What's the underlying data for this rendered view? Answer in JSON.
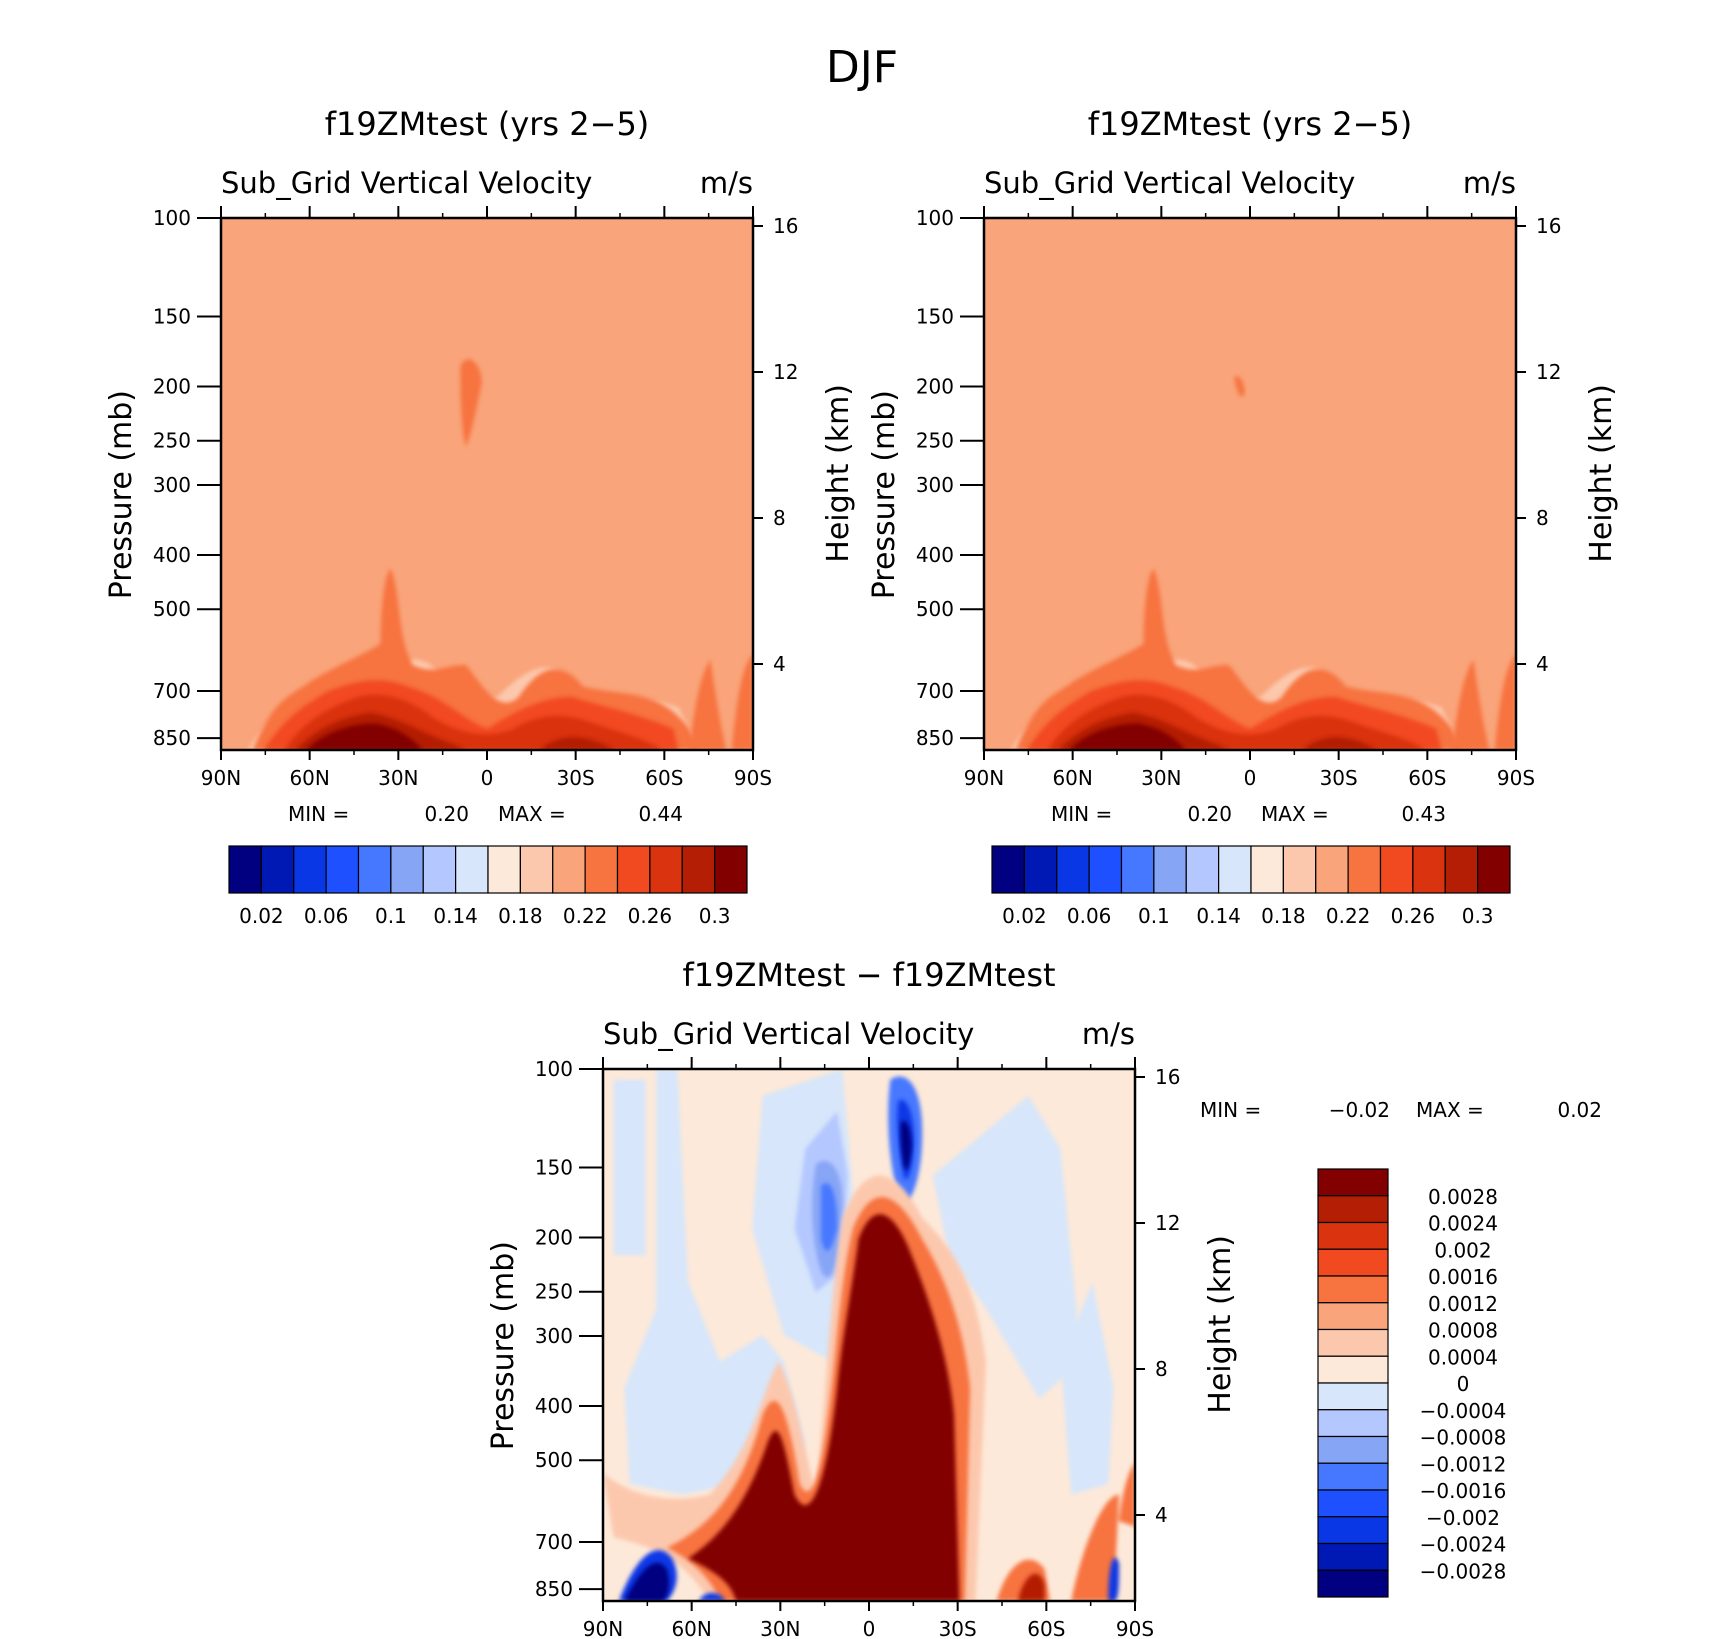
{
  "figure": {
    "title": "DJF"
  },
  "chart_data": [
    {
      "type": "contour",
      "title": "f19ZMtest (yrs 2−5)",
      "subtitle": "Sub_Grid Vertical Velocity",
      "units": "m/s",
      "ylabel": "Pressure (mb)",
      "ylabel_right": "Height (km)",
      "x_ticks": [
        "90N",
        "60N",
        "30N",
        "0",
        "30S",
        "60S",
        "90S"
      ],
      "y_ticks": [
        "100",
        "150",
        "200",
        "250",
        "300",
        "400",
        "500",
        "700",
        "850"
      ],
      "y_ticks_right": [
        "16",
        "12",
        "8",
        "4"
      ],
      "min_label": "MIN =",
      "min_value": "0.20",
      "max_label": "MAX =",
      "max_value": "0.44",
      "colorbar": {
        "orientation": "horizontal",
        "labels": [
          "0.02",
          "0.06",
          "0.1",
          "0.14",
          "0.18",
          "0.22",
          "0.26",
          "0.3"
        ],
        "colors": [
          "#000080",
          "#0019b4",
          "#0a37e6",
          "#1e50ff",
          "#4678ff",
          "#87a5f5",
          "#b4c8ff",
          "#d7e6fa",
          "#fde9d9",
          "#fcc8ad",
          "#f9a47a",
          "#f7733f",
          "#f24a20",
          "#d93310",
          "#b31e05",
          "#820000"
        ]
      },
      "background": "#f9a47a"
    },
    {
      "type": "contour",
      "title": "f19ZMtest (yrs 2−5)",
      "subtitle": "Sub_Grid Vertical Velocity",
      "units": "m/s",
      "ylabel": "Pressure (mb)",
      "ylabel_right": "Height (km)",
      "x_ticks": [
        "90N",
        "60N",
        "30N",
        "0",
        "30S",
        "60S",
        "90S"
      ],
      "y_ticks": [
        "100",
        "150",
        "200",
        "250",
        "300",
        "400",
        "500",
        "700",
        "850"
      ],
      "y_ticks_right": [
        "16",
        "12",
        "8",
        "4"
      ],
      "min_label": "MIN =",
      "min_value": "0.20",
      "max_label": "MAX =",
      "max_value": "0.43",
      "colorbar": {
        "orientation": "horizontal",
        "labels": [
          "0.02",
          "0.06",
          "0.1",
          "0.14",
          "0.18",
          "0.22",
          "0.26",
          "0.3"
        ],
        "colors": [
          "#000080",
          "#0019b4",
          "#0a37e6",
          "#1e50ff",
          "#4678ff",
          "#87a5f5",
          "#b4c8ff",
          "#d7e6fa",
          "#fde9d9",
          "#fcc8ad",
          "#f9a47a",
          "#f7733f",
          "#f24a20",
          "#d93310",
          "#b31e05",
          "#820000"
        ]
      },
      "background": "#f9a47a"
    },
    {
      "type": "contour",
      "title": "f19ZMtest − f19ZMtest",
      "subtitle": "Sub_Grid Vertical Velocity",
      "units": "m/s",
      "ylabel": "Pressure (mb)",
      "ylabel_right": "Height (km)",
      "x_ticks": [
        "90N",
        "60N",
        "30N",
        "0",
        "30S",
        "60S",
        "90S"
      ],
      "y_ticks": [
        "100",
        "150",
        "200",
        "250",
        "300",
        "400",
        "500",
        "700",
        "850"
      ],
      "y_ticks_right": [
        "16",
        "12",
        "8",
        "4"
      ],
      "min_label": "MIN =",
      "min_value": "−0.02",
      "max_label": "MAX =",
      "max_value": "0.02",
      "colorbar": {
        "orientation": "vertical",
        "labels": [
          "0.0028",
          "0.0024",
          "0.002",
          "0.0016",
          "0.0012",
          "0.0008",
          "0.0004",
          "0",
          "−0.0004",
          "−0.0008",
          "−0.0012",
          "−0.0016",
          "−0.002",
          "−0.0024",
          "−0.0028"
        ],
        "colors": [
          "#820000",
          "#b31e05",
          "#d93310",
          "#f24a20",
          "#f7733f",
          "#f9a47a",
          "#fcc8ad",
          "#fde9d9",
          "#d7e6fa",
          "#b4c8ff",
          "#87a5f5",
          "#4678ff",
          "#1e50ff",
          "#0a37e6",
          "#0019b4",
          "#000080"
        ]
      },
      "background": "#fde9d9"
    }
  ]
}
